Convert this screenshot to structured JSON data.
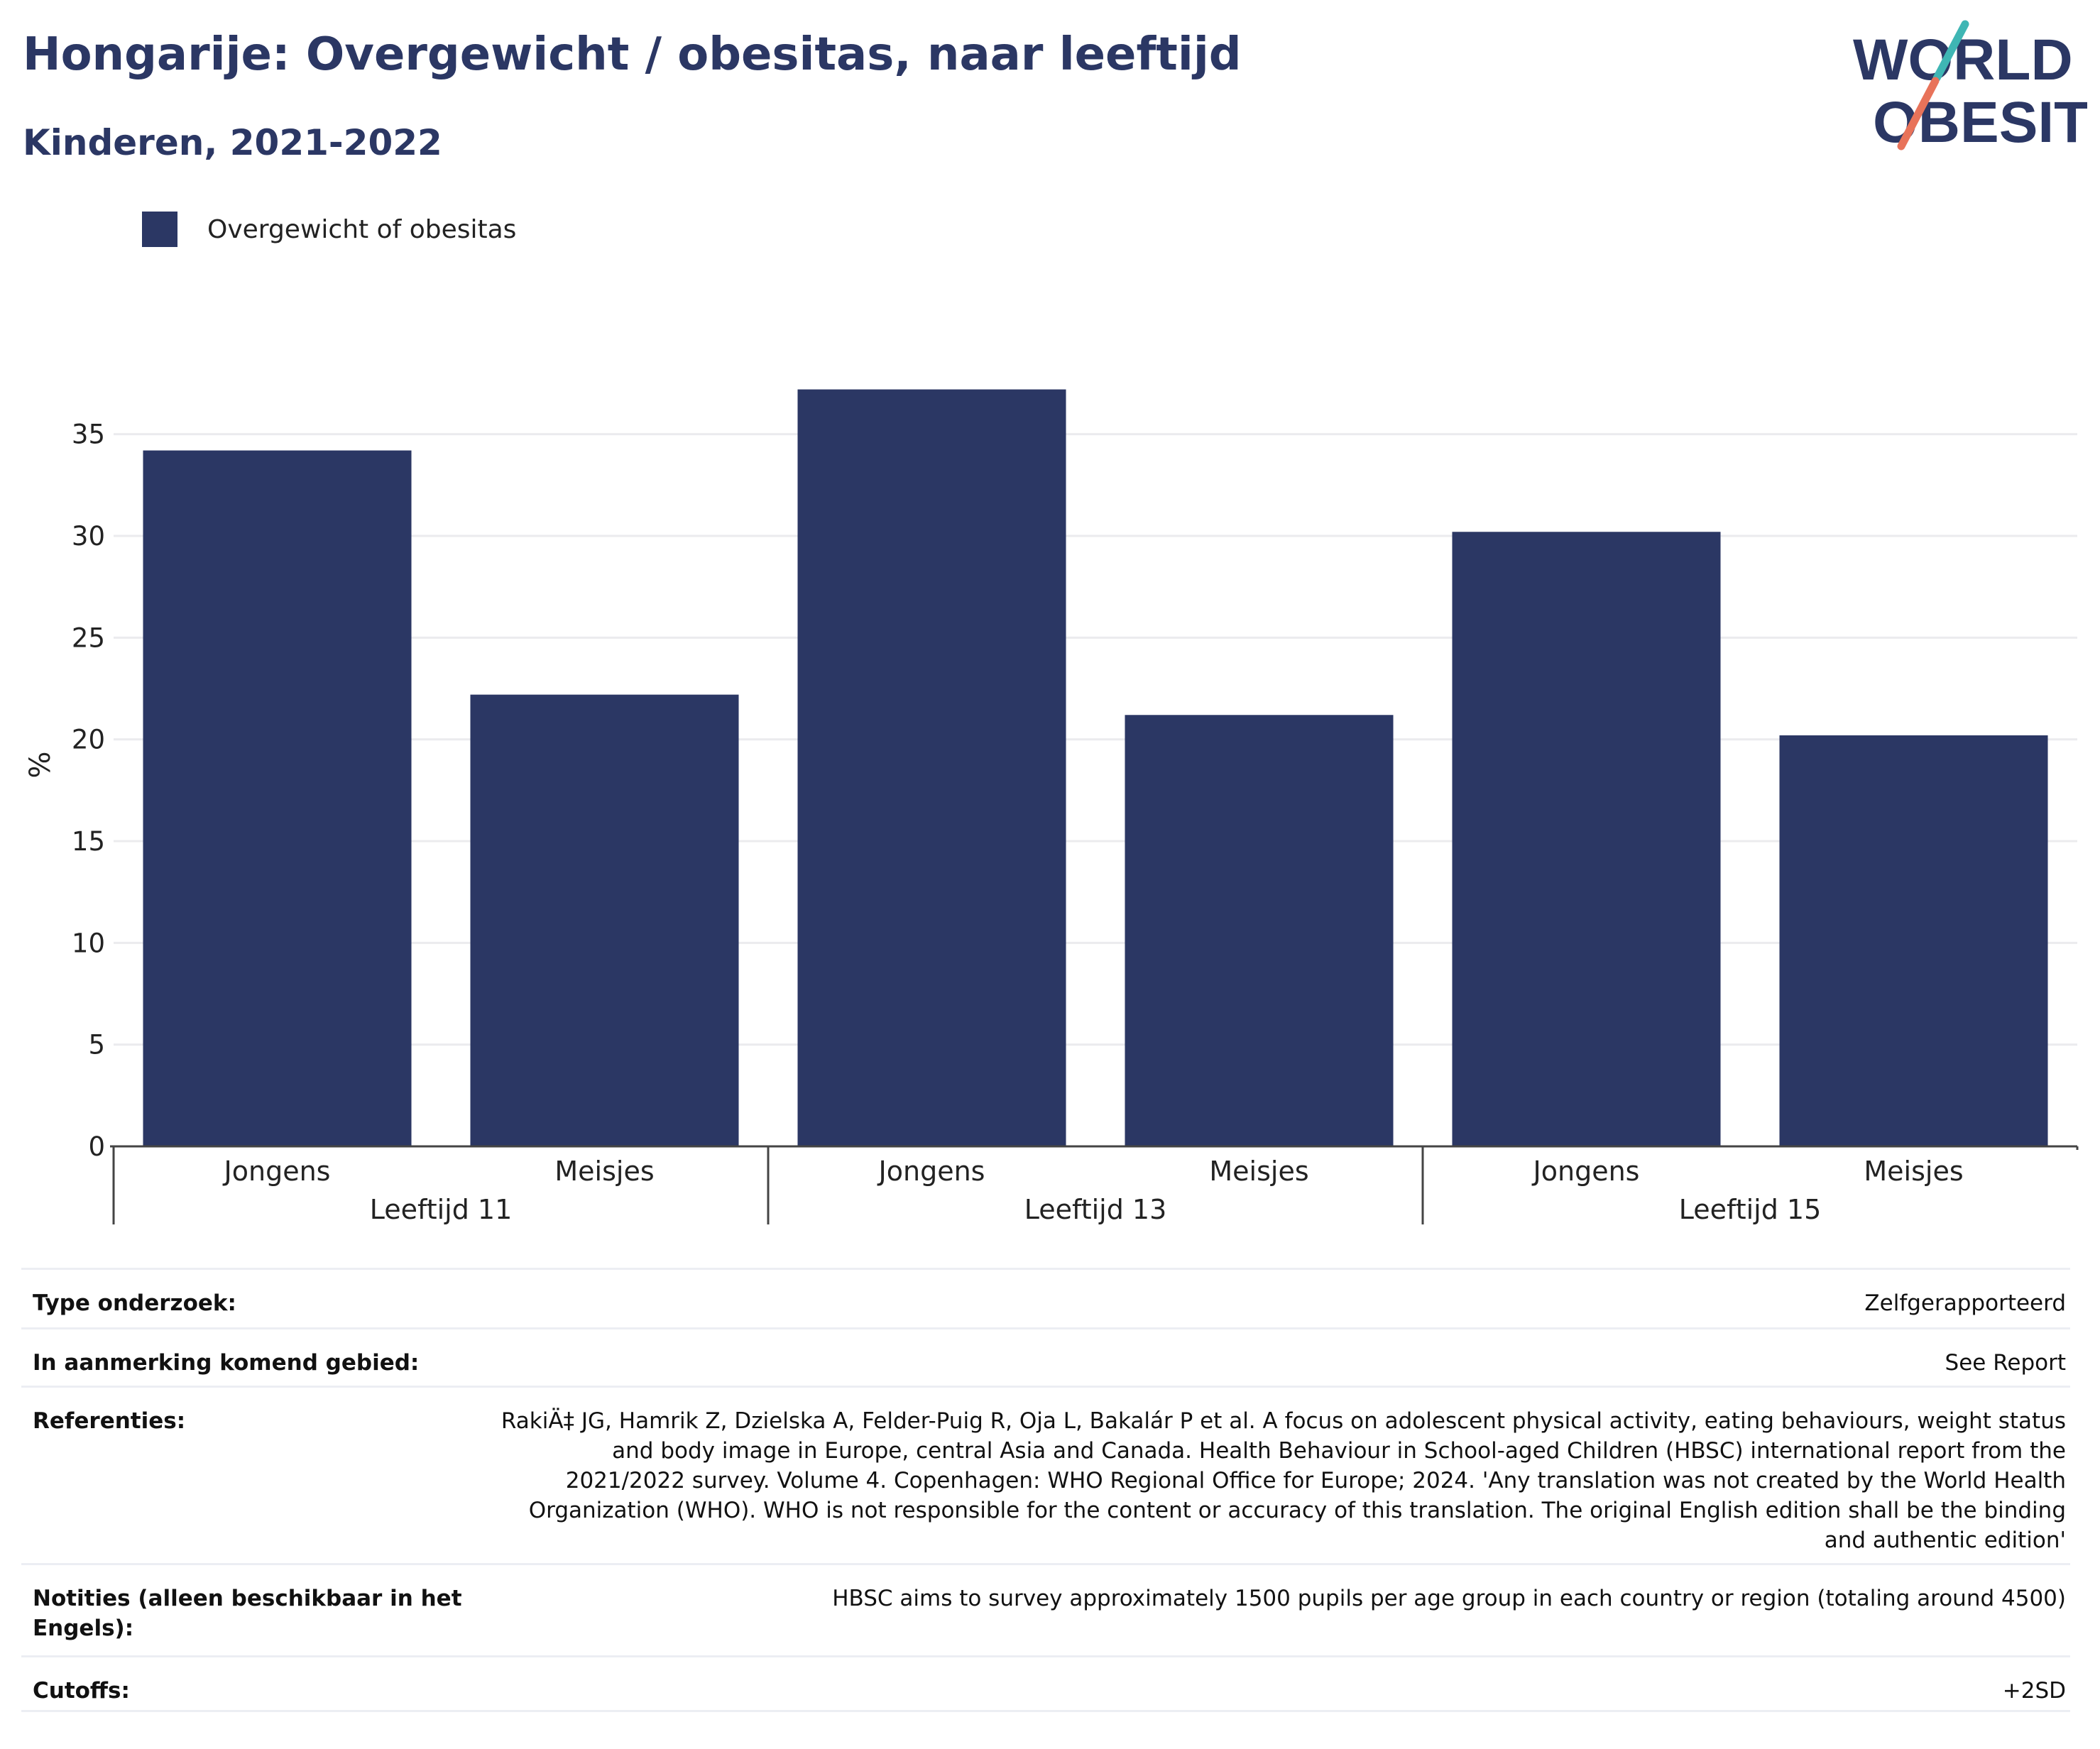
{
  "header": {
    "title": "Hongarije: Overgewicht / obesitas, naar leeftijd",
    "subtitle": "Kinderen, 2021-2022"
  },
  "logo": {
    "line1": "WORLD",
    "line2": "OBESITY"
  },
  "colors": {
    "bar": "#2b3764",
    "title": "#2b3764",
    "logo_teal": "#3fb6b4",
    "logo_coral": "#e8735a"
  },
  "chart_data": {
    "type": "bar",
    "ylabel": "%",
    "ylim": [
      0,
      37.5
    ],
    "yticks": [
      0,
      5,
      10,
      15,
      20,
      25,
      30,
      35
    ],
    "grid": true,
    "legend": {
      "position": "top-left",
      "entries": [
        "Overgewicht of obesitas"
      ]
    },
    "groups": [
      "Leeftijd 11",
      "Leeftijd 13",
      "Leeftijd 15"
    ],
    "categories": [
      "Jongens",
      "Meisjes"
    ],
    "series": [
      {
        "name": "Overgewicht of obesitas",
        "values": [
          [
            34.2,
            22.2
          ],
          [
            37.2,
            21.2
          ],
          [
            30.2,
            20.2
          ]
        ]
      }
    ]
  },
  "info": {
    "rows": [
      {
        "label": "Type onderzoek:",
        "value": "Zelfgerapporteerd"
      },
      {
        "label": "In aanmerking komend gebied:",
        "value": "See Report"
      },
      {
        "label": "Referenties:",
        "value": "RakiÄ‡ JG, Hamrik Z, Dzielska A, Felder-Puig R, Oja L, Bakalár P et al. A focus on adolescent physical activity, eating behaviours, weight status and body image in Europe, central Asia and Canada. Health Behaviour in School-aged Children (HBSC) international report from the 2021/2022 survey. Volume 4. Copenhagen: WHO Regional Office for Europe; 2024. 'Any translation was not created by the World Health Organization (WHO). WHO is not responsible for the content or accuracy of this translation. The original English edition shall be the binding and authentic edition'"
      },
      {
        "label": "Notities (alleen beschikbaar in het Engels):",
        "value": "HBSC aims to survey approximately 1500 pupils per age group in each country or region (totaling around 4500)"
      },
      {
        "label": "Cutoffs:",
        "value": "+2SD"
      }
    ]
  }
}
